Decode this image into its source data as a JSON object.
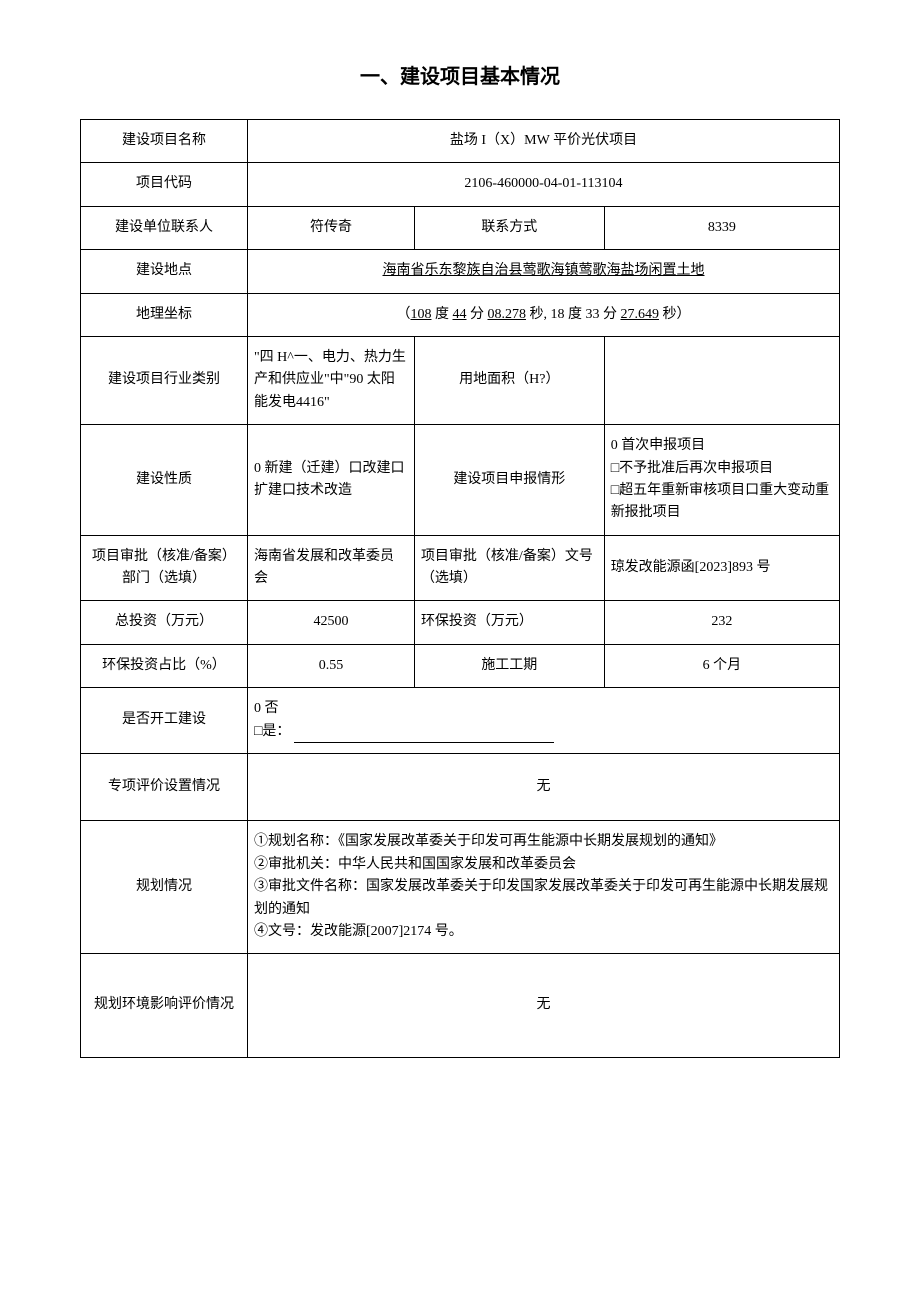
{
  "title": "一、建设项目基本情况",
  "rows": {
    "project_name_label": "建设项目名称",
    "project_name_value": "盐场 I（X）MW 平价光伏项目",
    "project_code_label": "项目代码",
    "project_code_value": "2106-460000-04-01-113104",
    "contact_person_label": "建设单位联系人",
    "contact_person_value": "符传奇",
    "contact_method_label": "联系方式",
    "contact_method_value": "8339",
    "location_label": "建设地点",
    "location_value": "海南省乐东黎族自治县莺歌海镇莺歌海盐场闲置土地",
    "coords_label": "地理坐标",
    "coords_prefix": "（",
    "coords_lon_deg": "108",
    "coords_deg_unit": " 度 ",
    "coords_lon_min": "44",
    "coords_min_unit": " 分 ",
    "coords_lon_sec": "08.278",
    "coords_mid": " 秒, 18 度 33 分 ",
    "coords_lat_sec": "27.649",
    "coords_suffix": " 秒）",
    "industry_label": "建设项目行业类别",
    "industry_value": "\"四 H^一、电力、热力生产和供应业\"中\"90 太阳能发电4416\"",
    "land_area_label": "用地面积（H?）",
    "land_area_value": "",
    "nature_label": "建设性质",
    "nature_value": "0 新建（迁建）口改建口扩建口技术改造",
    "declare_label": "建设项目申报情形",
    "declare_value": "0 首次申报项目\n□不予批准后再次申报项目\n□超五年重新审核项目口重大变动重新报批项目",
    "approval_dept_label": "项目审批（核准/备案）部门（选填）",
    "approval_dept_value": "海南省发展和改革委员会",
    "approval_no_label": "项目审批（核准/备案）文号（选填）",
    "approval_no_value": "琼发改能源函[2023]893 号",
    "total_invest_label": "总投资（万元）",
    "total_invest_value": "42500",
    "env_invest_label": "环保投资（万元）",
    "env_invest_value": "232",
    "env_ratio_label": "环保投资占比（%）",
    "env_ratio_value": "0.55",
    "duration_label": "施工工期",
    "duration_value": "6 个月",
    "started_label": "是否开工建设",
    "started_no": "0 否",
    "started_yes": "□是：",
    "special_eval_label": "专项评价设置情况",
    "special_eval_value": "无",
    "planning_label": "规划情况",
    "planning_value": "①规划名称：《国家发展改革委关于印发可再生能源中长期发展规划的通知》\n②审批机关：中华人民共和国国家发展和改革委员会\n③审批文件名称：国家发展改革委关于印发国家发展改革委关于印发可再生能源中长期发展规划的通知\n④文号：发改能源[2007]2174 号。",
    "plan_env_label": "规划环境影响评价情况",
    "plan_env_value": "无"
  }
}
